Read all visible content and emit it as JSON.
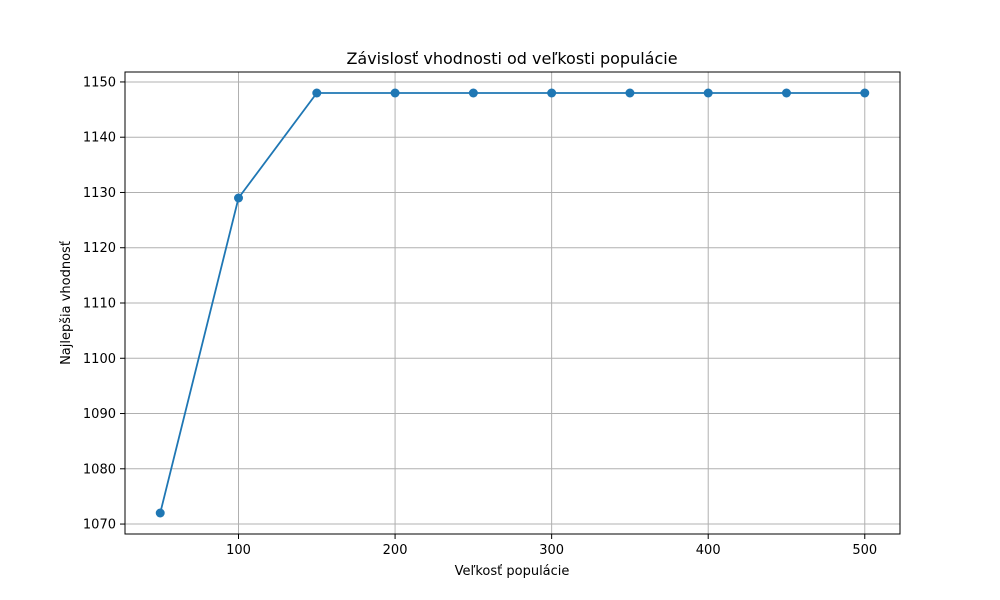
{
  "chart_data": {
    "type": "line",
    "title": "Závislosť vhodnosti od veľkosti populácie",
    "xlabel": "Veľkosť populácie",
    "ylabel": "Najlepšia vhodnosť",
    "x": [
      50,
      100,
      150,
      200,
      250,
      300,
      350,
      400,
      450,
      500
    ],
    "series": [
      {
        "name": "Najlepšia vhodnosť",
        "values": [
          1072,
          1129,
          1148,
          1148,
          1148,
          1148,
          1148,
          1148,
          1148,
          1148
        ]
      }
    ],
    "xlim": [
      27.5,
      522.5
    ],
    "ylim": [
      1068.2,
      1151.8
    ],
    "xticks": [
      100,
      200,
      300,
      400,
      500
    ],
    "yticks": [
      1070,
      1080,
      1090,
      1100,
      1110,
      1120,
      1130,
      1140,
      1150
    ],
    "grid": true,
    "marker": "circle",
    "color": "#1f77b4",
    "grid_color": "#b0b0b0"
  }
}
